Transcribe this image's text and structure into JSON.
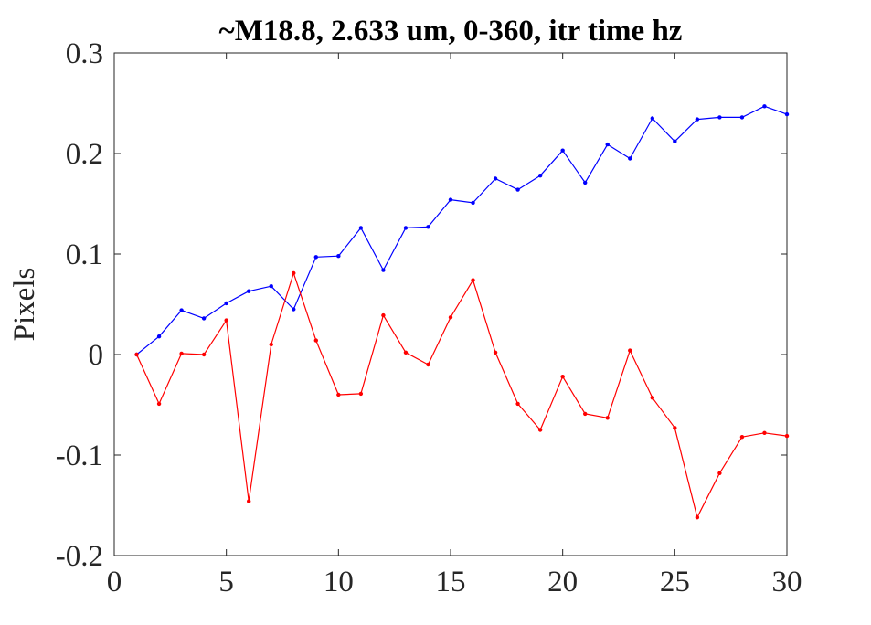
{
  "chart_data": {
    "type": "line",
    "title": "~M18.8, 2.633 um, 0-360, itr time hz",
    "xlabel": "",
    "ylabel": "Pixels",
    "xlim": [
      0,
      30
    ],
    "ylim": [
      -0.2,
      0.3
    ],
    "xticks": [
      "0",
      "5",
      "10",
      "15",
      "20",
      "25",
      "30"
    ],
    "yticks": [
      "-0.2",
      "-0.1",
      "0",
      "0.1",
      "0.2",
      "0.3"
    ],
    "grid": false,
    "legend": "none",
    "x": [
      1,
      2,
      3,
      4,
      5,
      6,
      7,
      8,
      9,
      10,
      11,
      12,
      13,
      14,
      15,
      16,
      17,
      18,
      19,
      20,
      21,
      22,
      23,
      24,
      25,
      26,
      27,
      28,
      29,
      30
    ],
    "series": [
      {
        "color": "#0000ff",
        "values": [
          0.0,
          0.018,
          0.044,
          0.036,
          0.051,
          0.063,
          0.068,
          0.045,
          0.097,
          0.098,
          0.126,
          0.084,
          0.126,
          0.127,
          0.154,
          0.151,
          0.175,
          0.164,
          0.178,
          0.203,
          0.171,
          0.209,
          0.195,
          0.235,
          0.212,
          0.234,
          0.236,
          0.236,
          0.247,
          0.239
        ]
      },
      {
        "color": "#ff0000",
        "values": [
          0.0,
          -0.049,
          0.001,
          0.0,
          0.034,
          -0.146,
          0.01,
          0.081,
          0.014,
          -0.04,
          -0.039,
          0.039,
          0.002,
          -0.01,
          0.037,
          0.074,
          0.002,
          -0.049,
          -0.075,
          -0.022,
          -0.059,
          -0.063,
          0.004,
          -0.043,
          -0.073,
          -0.162,
          -0.118,
          -0.082,
          -0.078,
          -0.081
        ]
      }
    ]
  }
}
